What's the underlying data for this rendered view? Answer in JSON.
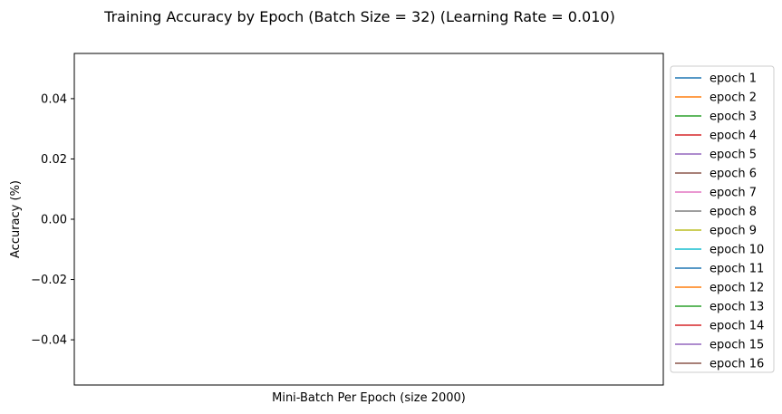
{
  "chart_data": {
    "type": "line",
    "title": "Training Accuracy by Epoch (Batch Size = 32) (Learning Rate = 0.010)",
    "xlabel": "Mini-Batch Per Epoch (size 2000)",
    "ylabel": "Accuracy (%)",
    "ylim": [
      -0.055,
      0.055
    ],
    "yticks": [
      0.04,
      0.02,
      0.0,
      -0.02,
      -0.04
    ],
    "ytick_labels": [
      "0.04",
      "0.02",
      "0.00",
      "−0.02",
      "−0.04"
    ],
    "xticks": [],
    "grid": false,
    "legend_position": "outside-right",
    "series": [
      {
        "name": "epoch 1",
        "color": "#1f77b4",
        "values": []
      },
      {
        "name": "epoch 2",
        "color": "#ff7f0e",
        "values": []
      },
      {
        "name": "epoch 3",
        "color": "#2ca02c",
        "values": []
      },
      {
        "name": "epoch 4",
        "color": "#d62728",
        "values": []
      },
      {
        "name": "epoch 5",
        "color": "#9467bd",
        "values": []
      },
      {
        "name": "epoch 6",
        "color": "#8c564b",
        "values": []
      },
      {
        "name": "epoch 7",
        "color": "#e377c2",
        "values": []
      },
      {
        "name": "epoch 8",
        "color": "#7f7f7f",
        "values": []
      },
      {
        "name": "epoch 9",
        "color": "#bcbd22",
        "values": []
      },
      {
        "name": "epoch 10",
        "color": "#17becf",
        "values": []
      },
      {
        "name": "epoch 11",
        "color": "#1f77b4",
        "values": []
      },
      {
        "name": "epoch 12",
        "color": "#ff7f0e",
        "values": []
      },
      {
        "name": "epoch 13",
        "color": "#2ca02c",
        "values": []
      },
      {
        "name": "epoch 14",
        "color": "#d62728",
        "values": []
      },
      {
        "name": "epoch 15",
        "color": "#9467bd",
        "values": []
      },
      {
        "name": "epoch 16",
        "color": "#8c564b",
        "values": []
      }
    ]
  }
}
